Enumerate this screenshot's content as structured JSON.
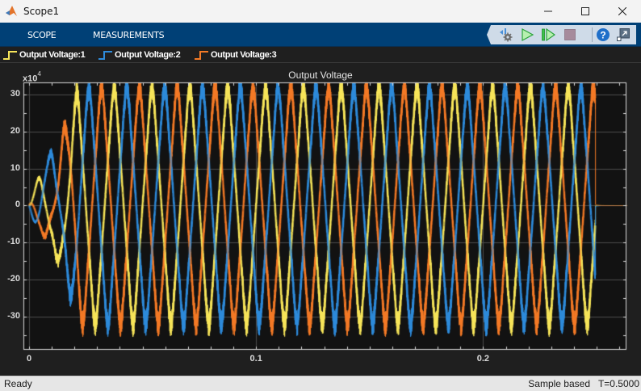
{
  "window": {
    "title": "Scope1",
    "controls": {
      "minimize": "minimize-icon",
      "maximize": "maximize-icon",
      "close": "close-icon"
    }
  },
  "toolstrip": {
    "tabs": [
      {
        "label": "SCOPE"
      },
      {
        "label": "MEASUREMENTS"
      }
    ],
    "tools": [
      {
        "icon": "settings-gear-icon",
        "tooltip": "Settings"
      },
      {
        "icon": "run-icon",
        "tooltip": "Run"
      },
      {
        "icon": "step-forward-icon",
        "tooltip": "Step Forward"
      },
      {
        "icon": "stop-icon",
        "tooltip": "Stop"
      },
      {
        "icon": "help-icon",
        "tooltip": "Help"
      },
      {
        "icon": "undock-icon",
        "tooltip": "Undock"
      }
    ]
  },
  "legend": [
    {
      "label": "Output Voltage:1",
      "color": "#F7E55A"
    },
    {
      "label": "Output Voltage:2",
      "color": "#2E8BDB"
    },
    {
      "label": "Output Voltage:3",
      "color": "#F47A26"
    }
  ],
  "colors": {
    "background": "#1f1f1f",
    "axes_bg": "#121212",
    "grid": "#4a4a4a",
    "axis_line": "#d9d9d9",
    "toolstrip": "#004076"
  },
  "status": {
    "left": "Ready",
    "mode": "Sample based",
    "time": "T=0.5000"
  },
  "chart_data": {
    "type": "line",
    "title": "Output Voltage",
    "xlabel": "",
    "ylabel": "",
    "y_exponent_label": "x10",
    "y_exponent": "4",
    "xlim": [
      0,
      0.2635
    ],
    "ylim": [
      -39,
      33.3
    ],
    "grid": true,
    "legend_position": "top",
    "xticks": [
      0,
      0.1,
      0.2
    ],
    "xtick_labels": [
      "0",
      "0.1",
      "0.2"
    ],
    "yticks": [
      -30,
      -20,
      -10,
      0,
      10,
      20,
      30
    ],
    "ytick_labels": [
      "-30",
      "-20",
      "-10",
      "0",
      "10",
      "20",
      "30"
    ],
    "signal_model": {
      "description": "Three-phase PWM inverter output, 60 Hz, amplitude ~±30 (x10^4), startup transient 0–0.02 s, off after ~0.25 s",
      "frequency_hz": 60,
      "amplitude": 24,
      "peak_envelope": 32,
      "phases_deg": [
        0,
        -120,
        120
      ],
      "startup_end_s": 0.022,
      "shutdown_s": 0.2495
    },
    "series": [
      {
        "name": "Output Voltage:1",
        "color": "#F7E55A",
        "x": [
          0,
          0.005,
          0.01,
          0.015,
          0.02,
          0.0375,
          0.054,
          0.1041,
          0.1541,
          0.2041,
          0.2375,
          0.25,
          0.26
        ],
        "values": [
          0,
          11,
          2,
          -20,
          -8,
          31,
          31,
          31,
          31,
          31,
          31,
          0,
          0
        ]
      },
      {
        "name": "Output Voltage:2",
        "color": "#2E8BDB",
        "x": [
          0,
          0.005,
          0.01,
          0.015,
          0.02,
          0.043,
          0.0597,
          0.1097,
          0.1597,
          0.2097,
          0.243,
          0.25,
          0.26
        ],
        "values": [
          0,
          -6,
          19,
          5,
          -28,
          32,
          32,
          32,
          32,
          32,
          32,
          0,
          0
        ]
      },
      {
        "name": "Output Voltage:3",
        "color": "#F47A26",
        "x": [
          0,
          0.005,
          0.01,
          0.015,
          0.02,
          0.0264,
          0.0486,
          0.0986,
          0.1486,
          0.1986,
          0.2375,
          0.25,
          0.26
        ],
        "values": [
          0,
          -12,
          -18,
          22,
          -36,
          28,
          29,
          30,
          30,
          30,
          30,
          0,
          0
        ]
      }
    ]
  }
}
